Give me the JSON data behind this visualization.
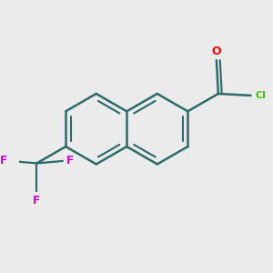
{
  "bg_color": "#EBEBEB",
  "bond_color": "#2d6b6b",
  "oxygen_color": "#FF0000",
  "chlorine_color": "#33CC00",
  "fluorine_color": "#CC00CC",
  "bond_width": 1.8,
  "figsize": [
    3.0,
    3.0
  ],
  "dpi": 100,
  "xlim": [
    0,
    10
  ],
  "ylim": [
    0,
    10
  ],
  "scale": 1.4
}
